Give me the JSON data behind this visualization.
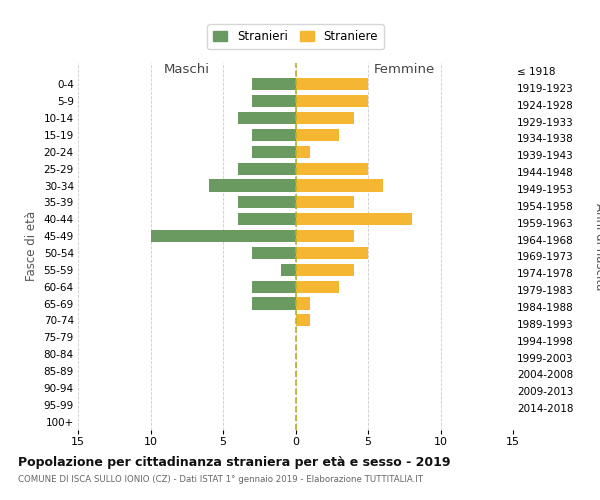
{
  "age_groups": [
    "0-4",
    "5-9",
    "10-14",
    "15-19",
    "20-24",
    "25-29",
    "30-34",
    "35-39",
    "40-44",
    "45-49",
    "50-54",
    "55-59",
    "60-64",
    "65-69",
    "70-74",
    "75-79",
    "80-84",
    "85-89",
    "90-94",
    "95-99",
    "100+"
  ],
  "birth_years": [
    "2014-2018",
    "2009-2013",
    "2004-2008",
    "1999-2003",
    "1994-1998",
    "1989-1993",
    "1984-1988",
    "1979-1983",
    "1974-1978",
    "1969-1973",
    "1964-1968",
    "1959-1963",
    "1954-1958",
    "1949-1953",
    "1944-1948",
    "1939-1943",
    "1934-1938",
    "1929-1933",
    "1924-1928",
    "1919-1923",
    "≤ 1918"
  ],
  "maschi": [
    3,
    3,
    4,
    3,
    3,
    4,
    6,
    4,
    4,
    10,
    3,
    1,
    3,
    3,
    0,
    0,
    0,
    0,
    0,
    0,
    0
  ],
  "femmine": [
    5,
    5,
    4,
    3,
    1,
    5,
    6,
    4,
    8,
    4,
    5,
    4,
    3,
    1,
    1,
    0,
    0,
    0,
    0,
    0,
    0
  ],
  "maschi_color": "#6a9a5f",
  "femmine_color": "#f5b731",
  "background_color": "#ffffff",
  "grid_color": "#cccccc",
  "dashed_line_color": "#b8b020",
  "title": "Popolazione per cittadinanza straniera per età e sesso - 2019",
  "subtitle": "COMUNE DI ISCA SULLO IONIO (CZ) - Dati ISTAT 1° gennaio 2019 - Elaborazione TUTTITALIA.IT",
  "xlabel_left": "Maschi",
  "xlabel_right": "Femmine",
  "ylabel_left": "Fasce di età",
  "ylabel_right": "Anni di nascita",
  "xlim": 15,
  "legend_stranieri": "Stranieri",
  "legend_straniere": "Straniere"
}
